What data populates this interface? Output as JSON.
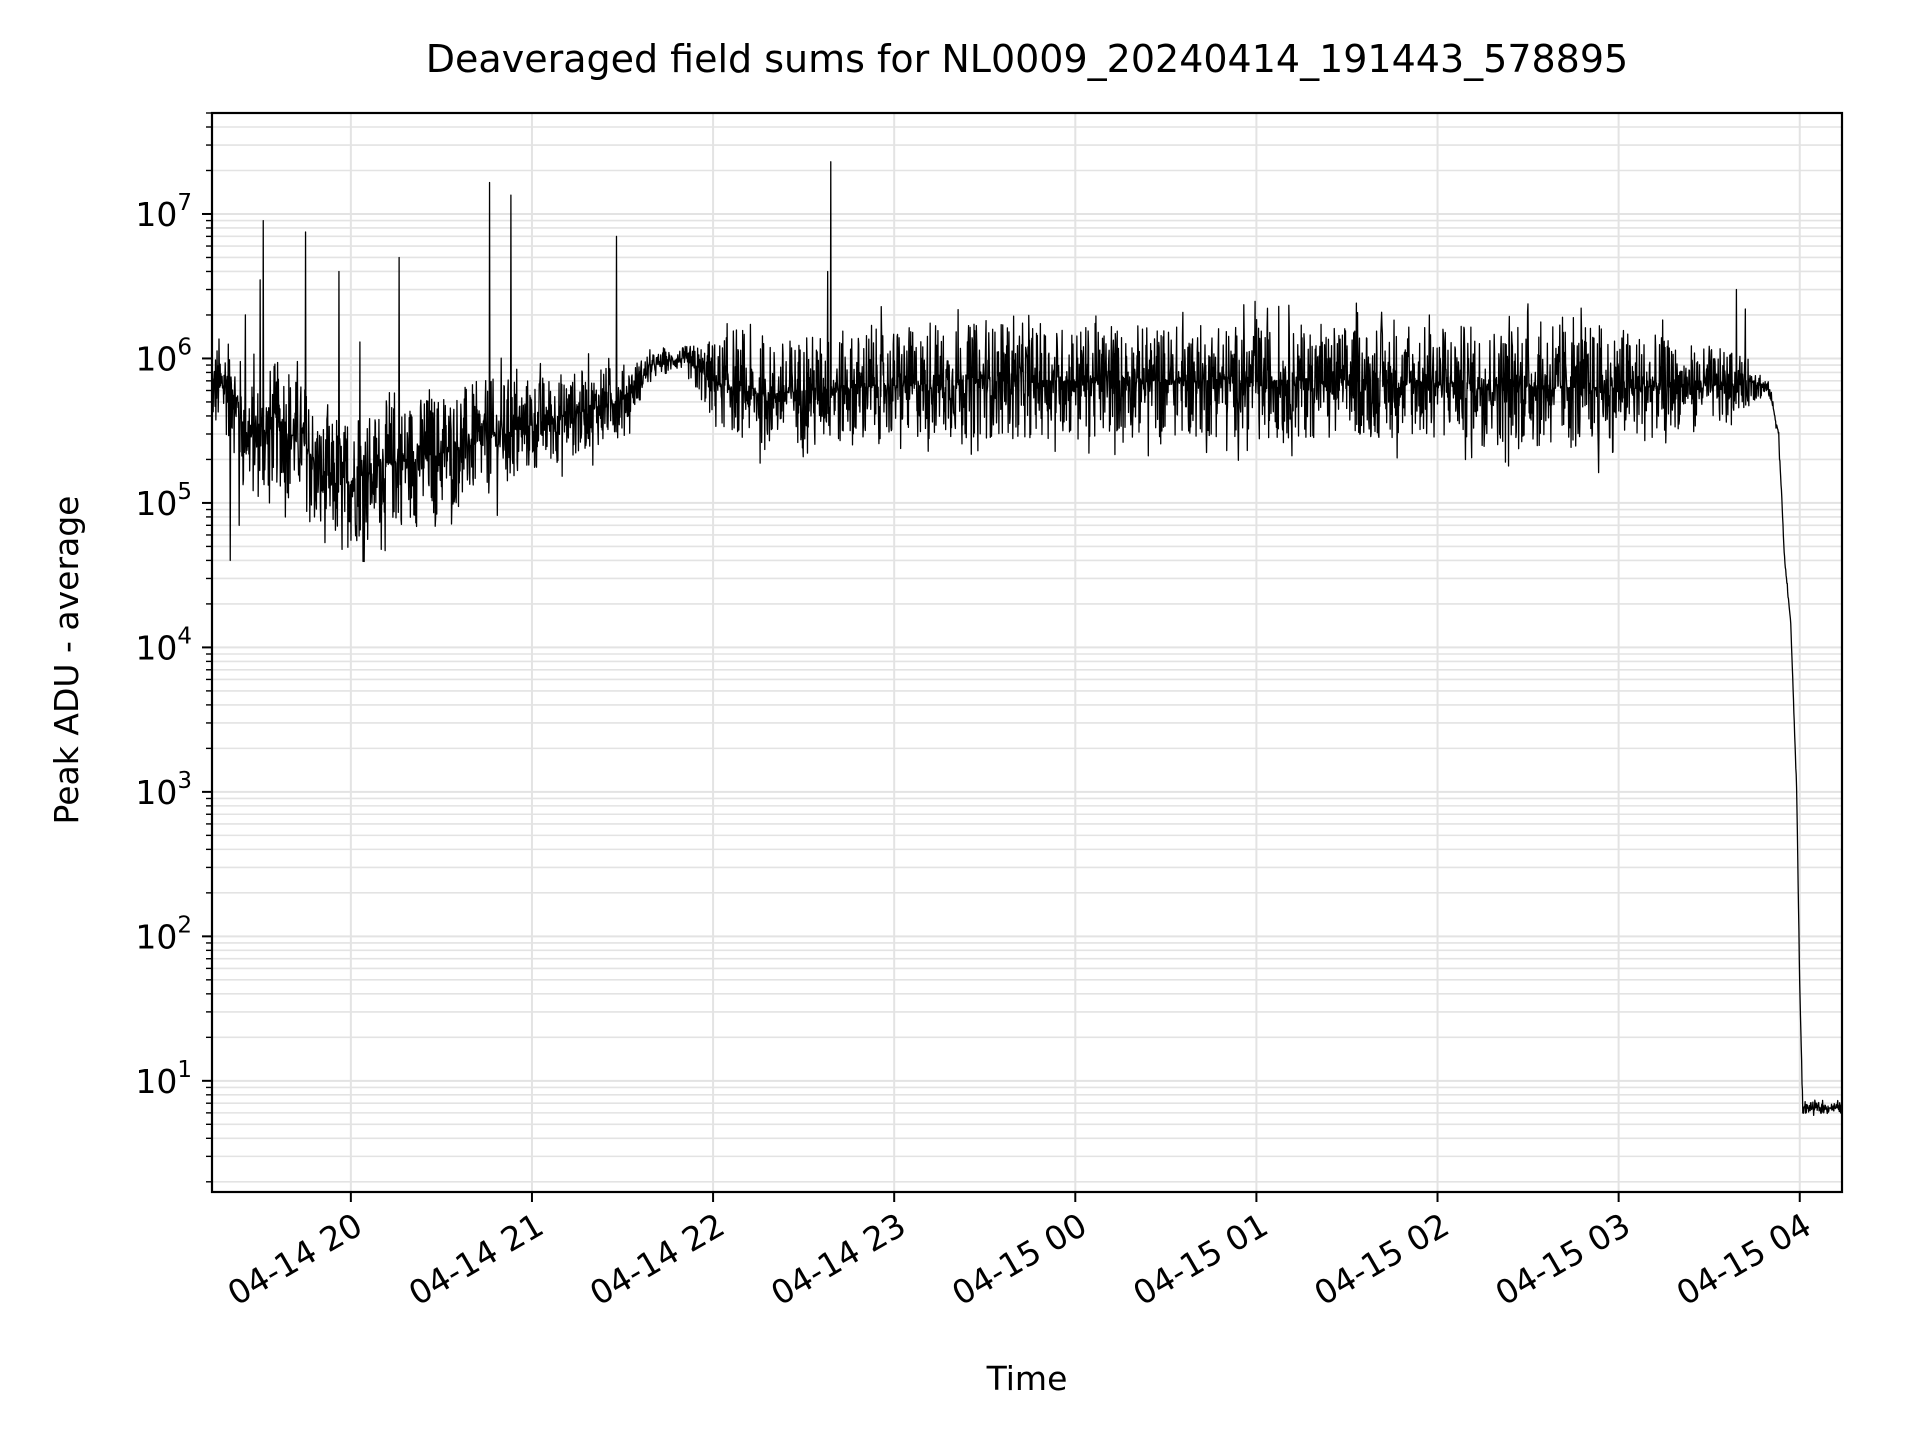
{
  "chart_data": {
    "type": "line",
    "title": "Deaveraged field sums for NL0009_20240414_191443_578895",
    "xlabel": "Time",
    "ylabel": "Peak ADU - average",
    "yscale": "log",
    "ylim": [
      1.7,
      50000000
    ],
    "xlim": [
      "2024-04-14 19:14",
      "2024-04-15 04:14"
    ],
    "grid": true,
    "x_ticks": [
      {
        "value": "2024-04-14 20:00",
        "label": "04-14 20"
      },
      {
        "value": "2024-04-14 21:00",
        "label": "04-14 21"
      },
      {
        "value": "2024-04-14 22:00",
        "label": "04-14 22"
      },
      {
        "value": "2024-04-14 23:00",
        "label": "04-14 23"
      },
      {
        "value": "2024-04-15 00:00",
        "label": "04-15 00"
      },
      {
        "value": "2024-04-15 01:00",
        "label": "04-15 01"
      },
      {
        "value": "2024-04-15 02:00",
        "label": "04-15 02"
      },
      {
        "value": "2024-04-15 03:00",
        "label": "04-15 03"
      },
      {
        "value": "2024-04-15 04:00",
        "label": "04-15 04"
      }
    ],
    "y_ticks": [
      {
        "value": 10,
        "base": "10",
        "exp": "1"
      },
      {
        "value": 100,
        "base": "10",
        "exp": "2"
      },
      {
        "value": 1000,
        "base": "10",
        "exp": "3"
      },
      {
        "value": 10000,
        "base": "10",
        "exp": "4"
      },
      {
        "value": 100000,
        "base": "10",
        "exp": "5"
      },
      {
        "value": 1000000,
        "base": "10",
        "exp": "6"
      },
      {
        "value": 10000000,
        "base": "10",
        "exp": "7"
      }
    ],
    "series": [
      {
        "color": "#000000",
        "x": [
          "2024-04-14 19:14",
          "2024-04-14 19:20",
          "2024-04-14 19:25",
          "2024-04-14 19:30",
          "2024-04-14 19:35",
          "2024-04-14 19:40",
          "2024-04-14 19:45",
          "2024-04-14 19:50",
          "2024-04-14 19:55",
          "2024-04-14 20:00",
          "2024-04-14 20:10",
          "2024-04-14 20:20",
          "2024-04-14 20:30",
          "2024-04-14 20:40",
          "2024-04-14 20:50",
          "2024-04-14 21:00",
          "2024-04-14 21:15",
          "2024-04-14 21:30",
          "2024-04-14 21:40",
          "2024-04-14 21:50",
          "2024-04-14 22:00",
          "2024-04-14 22:15",
          "2024-04-14 22:30",
          "2024-04-14 23:00",
          "2024-04-14 23:30",
          "2024-04-15 00:00",
          "2024-04-15 00:30",
          "2024-04-15 01:00",
          "2024-04-15 01:30",
          "2024-04-15 02:00",
          "2024-04-15 02:30",
          "2024-04-15 03:00",
          "2024-04-15 03:20",
          "2024-04-15 03:35",
          "2024-04-15 03:45",
          "2024-04-15 03:50",
          "2024-04-15 03:53",
          "2024-04-15 03:55",
          "2024-04-15 03:57",
          "2024-04-15 03:59",
          "2024-04-15 04:00",
          "2024-04-15 04:01",
          "2024-04-15 04:14"
        ],
        "y": [
          600000,
          700000,
          300000,
          280000,
          350000,
          300000,
          250000,
          150000,
          130000,
          140000,
          180000,
          200000,
          220000,
          260000,
          300000,
          350000,
          420000,
          520000,
          900000,
          1000000,
          700000,
          550000,
          600000,
          650000,
          700000,
          700000,
          700000,
          700000,
          700000,
          680000,
          650000,
          620000,
          650000,
          650000,
          700000,
          600000,
          300000,
          40000,
          15000,
          1000,
          45,
          6.5,
          6.5
        ],
        "noise": [
          0.35,
          0.4,
          0.45,
          0.45,
          0.45,
          0.45,
          0.45,
          0.45,
          0.45,
          0.45,
          0.45,
          0.45,
          0.45,
          0.42,
          0.4,
          0.35,
          0.3,
          0.25,
          0.08,
          0.08,
          0.3,
          0.35,
          0.4,
          0.4,
          0.4,
          0.4,
          0.4,
          0.4,
          0.4,
          0.4,
          0.45,
          0.45,
          0.3,
          0.25,
          0.15,
          0.05,
          0.05,
          0.02,
          0.02,
          0.02,
          0.02,
          0.04,
          0.04
        ],
        "spikes": [
          {
            "x": "2024-04-14 19:20",
            "y": 40000
          },
          {
            "x": "2024-04-14 19:23",
            "y": 70000
          },
          {
            "x": "2024-04-14 19:25",
            "y": 2000000
          },
          {
            "x": "2024-04-14 19:30",
            "y": 3500000
          },
          {
            "x": "2024-04-14 19:31",
            "y": 9000000
          },
          {
            "x": "2024-04-14 19:33",
            "y": 100000
          },
          {
            "x": "2024-04-14 19:45",
            "y": 7500000
          },
          {
            "x": "2024-04-14 19:48",
            "y": 80000
          },
          {
            "x": "2024-04-14 19:50",
            "y": 75000
          },
          {
            "x": "2024-04-14 19:56",
            "y": 4000000
          },
          {
            "x": "2024-04-14 20:03",
            "y": 1300000
          },
          {
            "x": "2024-04-14 20:07",
            "y": 100000
          },
          {
            "x": "2024-04-14 20:16",
            "y": 5000000
          },
          {
            "x": "2024-04-14 20:46",
            "y": 16500000
          },
          {
            "x": "2024-04-14 20:53",
            "y": 13500000
          },
          {
            "x": "2024-04-14 21:28",
            "y": 7000000
          },
          {
            "x": "2024-04-14 22:38",
            "y": 4000000
          },
          {
            "x": "2024-04-14 22:39",
            "y": 23000000
          },
          {
            "x": "2024-04-15 03:39",
            "y": 3000000
          },
          {
            "x": "2024-04-15 03:42",
            "y": 2200000
          }
        ]
      }
    ]
  }
}
